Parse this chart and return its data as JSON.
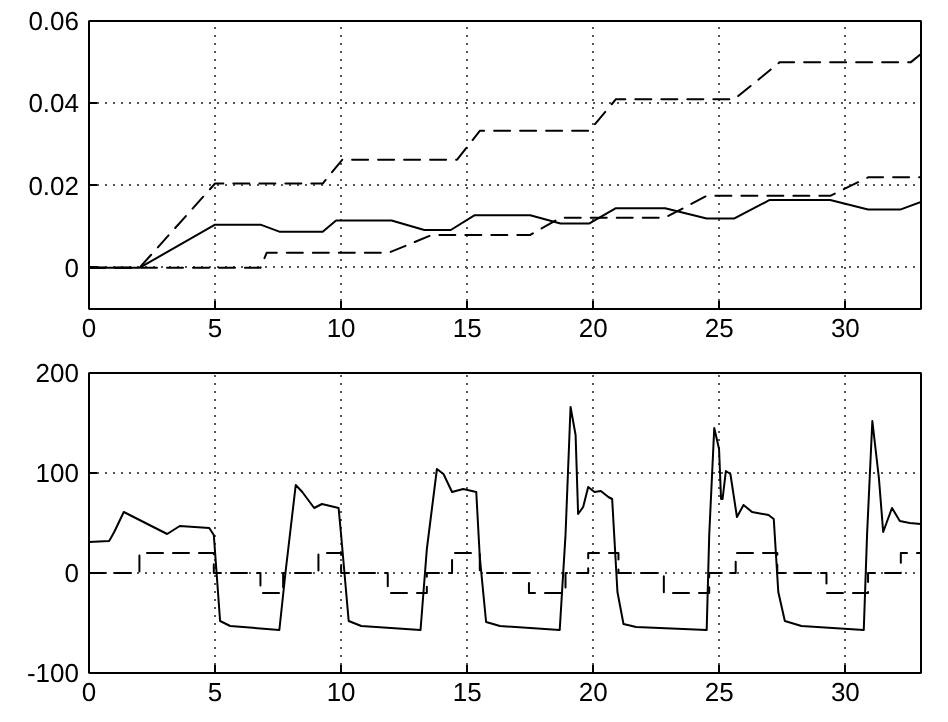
{
  "chart_data": [
    {
      "type": "line",
      "xlim": [
        0,
        33
      ],
      "ylim": [
        -0.01,
        0.06
      ],
      "xticks": [
        0,
        5,
        10,
        15,
        20,
        25,
        30
      ],
      "yticks": [
        0,
        0.02,
        0.04,
        0.06
      ],
      "grid": true,
      "marker": "none",
      "series": [
        {
          "color": "#000000",
          "line_style": "solid",
          "x": [
            0,
            2,
            5,
            6.8,
            7.55,
            9.27,
            9.8,
            12,
            13.3,
            14.35,
            15.3,
            17.5,
            18.7,
            19.85,
            20.9,
            22.85,
            24.5,
            25.6,
            27,
            29.4,
            30.9,
            32.2,
            33
          ],
          "values": [
            0,
            0,
            0.0105,
            0.0105,
            0.0088,
            0.0088,
            0.0115,
            0.0115,
            0.0092,
            0.0092,
            0.0128,
            0.0128,
            0.0108,
            0.0108,
            0.0145,
            0.0145,
            0.012,
            0.012,
            0.0165,
            0.0165,
            0.0142,
            0.0142,
            0.016
          ]
        },
        {
          "color": "#000000",
          "line_style": "dashed",
          "x": [
            0,
            2,
            5,
            9.27,
            10.05,
            14.6,
            15.5,
            19.85,
            20.9,
            25.6,
            27.4,
            32.6,
            33
          ],
          "values": [
            0,
            0,
            0.0205,
            0.0205,
            0.0263,
            0.0263,
            0.0333,
            0.0333,
            0.041,
            0.041,
            0.05,
            0.05,
            0.052
          ]
        },
        {
          "color": "#000000",
          "line_style": "dashed",
          "x": [
            0,
            6.8,
            7.05,
            11.9,
            13.6,
            17.5,
            18.7,
            22.85,
            24.5,
            29.4,
            30.9,
            33
          ],
          "values": [
            0,
            0,
            0.0037,
            0.0037,
            0.008,
            0.008,
            0.0122,
            0.0122,
            0.0175,
            0.0175,
            0.022,
            0.022
          ]
        }
      ]
    },
    {
      "type": "line",
      "xlim": [
        0,
        33
      ],
      "ylim": [
        -100,
        200
      ],
      "xticks": [
        0,
        5,
        10,
        15,
        20,
        25,
        30
      ],
      "yticks": [
        -100,
        0,
        100,
        200
      ],
      "grid": true,
      "marker": "none",
      "series": [
        {
          "color": "#000000",
          "line_style": "solid",
          "x": [
            0,
            0.8,
            1.0,
            1.38,
            3.1,
            3.6,
            4.77,
            4.95,
            5.2,
            5.6,
            7.55,
            7.8,
            8.2,
            8.46,
            8.93,
            9.24,
            9.9,
            10.0,
            10.3,
            10.8,
            13.15,
            13.4,
            13.8,
            14.06,
            14.4,
            14.84,
            15.36,
            15.5,
            15.75,
            16.3,
            18.67,
            18.9,
            19.1,
            19.3,
            19.4,
            19.6,
            19.8,
            20.05,
            20.3,
            20.6,
            20.75,
            20.96,
            21.2,
            21.7,
            24.5,
            24.6,
            24.8,
            24.99,
            25.07,
            25.13,
            25.26,
            25.44,
            25.7,
            25.96,
            26.3,
            26.95,
            27.16,
            27.34,
            27.6,
            28.26,
            30.73,
            30.86,
            31.07,
            31.33,
            31.5,
            31.85,
            32.16,
            32.55,
            33
          ],
          "values": [
            31,
            32,
            41,
            61,
            39,
            47,
            45,
            38,
            -48,
            -53,
            -57,
            2,
            88,
            81,
            65,
            69,
            65,
            38,
            -48,
            -53,
            -57,
            24,
            104,
            99,
            81,
            84,
            81,
            16,
            -49,
            -53,
            -57,
            38,
            166,
            138,
            59,
            66,
            86,
            81,
            82,
            76,
            74,
            -19,
            -51,
            -54,
            -57,
            38,
            145,
            124,
            74,
            74,
            102,
            99,
            56,
            68,
            61,
            58,
            54,
            -19,
            -48,
            -53,
            -57,
            38,
            152,
            95,
            41,
            65,
            52,
            50,
            49
          ]
        },
        {
          "color": "#000000",
          "line_style": "dashed",
          "x": [
            0,
            2,
            2,
            4.95,
            4.95,
            6.8,
            6.8,
            7.7,
            7.7,
            9.1,
            9.1,
            10,
            10,
            11.85,
            11.85,
            13.4,
            13.4,
            14.4,
            14.4,
            15.5,
            15.5,
            17.45,
            17.45,
            18.9,
            18.9,
            19.8,
            19.8,
            21,
            21,
            22.8,
            22.8,
            24.6,
            24.6,
            25.65,
            25.65,
            27.3,
            27.3,
            29.25,
            29.25,
            30.9,
            30.9,
            32.2,
            32.2,
            33
          ],
          "values": [
            0,
            0,
            20,
            20,
            0,
            0,
            -20,
            -20,
            0,
            0,
            20,
            20,
            0,
            0,
            -20,
            -20,
            0,
            0,
            20,
            20,
            0,
            0,
            -20,
            -20,
            0,
            0,
            20,
            20,
            0,
            0,
            -20,
            -20,
            0,
            0,
            20,
            20,
            0,
            0,
            -20,
            -20,
            0,
            0,
            20,
            20
          ]
        }
      ]
    }
  ]
}
